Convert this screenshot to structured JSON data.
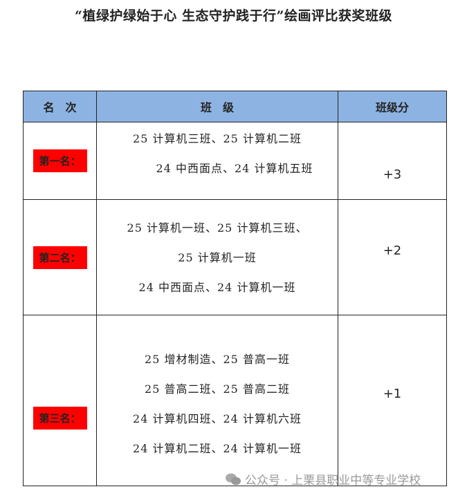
{
  "title": "“植绿护绿始于心 生态守护践于行”绘画评比获奖班级",
  "table": {
    "headers": [
      "名　次",
      "班　级",
      "班级分"
    ],
    "rows": [
      {
        "rank": "第一名：",
        "classes": [
          "25 计算机三班、25 计算机二班",
          "24 中西面点、24 计算机五班"
        ],
        "score": "+3"
      },
      {
        "rank": "第二名：",
        "classes": [
          "25 计算机一班、25 计算机三班、",
          "25 计算机一班",
          "24 中西面点、24 计算机一班"
        ],
        "score": "+2"
      },
      {
        "rank": "第三名：",
        "classes": [
          "25 增材制造、25 普高一班",
          "25 普高二班、25 普高二班",
          "24 计算机四班、24 计算机六班",
          "24 计算机二班、24 计算机一班"
        ],
        "score": "+1"
      }
    ]
  },
  "watermark": {
    "icon": "wechat-icon",
    "text": "公众号 · 上栗县职业中等专业学校"
  },
  "colors": {
    "header_bg": "#8db3e2",
    "rank_bg": "#ff0000"
  }
}
